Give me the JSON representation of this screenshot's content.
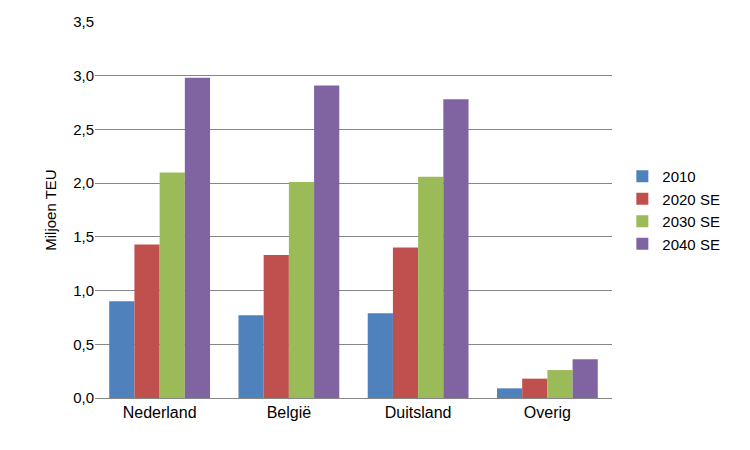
{
  "chart_data": {
    "type": "bar",
    "y_label": "Miljoen TEU",
    "categories": [
      "Nederland",
      "België",
      "Duitsland",
      "Overig"
    ],
    "series": [
      {
        "name": "2010",
        "color": "#4F81BD",
        "values": [
          0.9,
          0.77,
          0.79,
          0.09
        ]
      },
      {
        "name": "2020 SE",
        "color": "#C0504D",
        "values": [
          1.43,
          1.33,
          1.4,
          0.18
        ]
      },
      {
        "name": "2030 SE",
        "color": "#9BBB59",
        "values": [
          2.1,
          2.01,
          2.06,
          0.26
        ]
      },
      {
        "name": "2040 SE",
        "color": "#8064A2",
        "values": [
          2.98,
          2.91,
          2.78,
          0.36
        ]
      }
    ],
    "ylim": [
      0,
      3.5
    ],
    "yticks": [
      {
        "value": 0,
        "label": "0,0"
      },
      {
        "value": 0.5,
        "label": "0,5"
      },
      {
        "value": 1,
        "label": "1,0"
      },
      {
        "value": 1.5,
        "label": "1,5"
      },
      {
        "value": 2,
        "label": "2,0"
      },
      {
        "value": 2.5,
        "label": "2,5"
      },
      {
        "value": 3,
        "label": "3,0"
      },
      {
        "value": 3.5,
        "label": "3,5"
      }
    ],
    "grid": true,
    "legend": "right"
  }
}
